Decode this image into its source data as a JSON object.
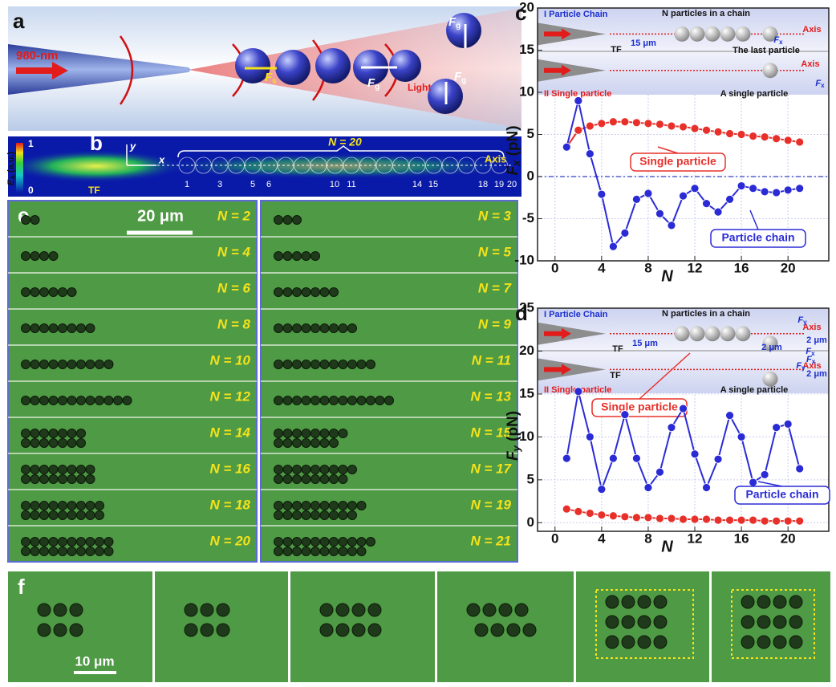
{
  "panels": {
    "a": {
      "label": "a",
      "laser": "980-nm",
      "force_s": [
        "F",
        "s"
      ],
      "force_g_1": [
        "F",
        "g"
      ],
      "force_g_2": [
        "F",
        "g"
      ],
      "force_g_3": [
        "F",
        "g"
      ],
      "light": "Light"
    },
    "b": {
      "label": "b",
      "axis_y": "y",
      "axis_x": "x",
      "count": "N = 20",
      "axis": "Axis",
      "tf": "TF",
      "colorbar_label": [
        "E",
        "A",
        " (a.u.)"
      ],
      "colorbar_max": "1",
      "colorbar_min": "0",
      "indices": [
        "1",
        "3",
        "5",
        "6",
        "10",
        "11",
        "14",
        "15",
        "18",
        "19",
        "20"
      ]
    },
    "e": {
      "label": "e",
      "scale": "20 μm",
      "counts_left": [
        "N = 2",
        "N = 4",
        "N = 6",
        "N = 8",
        "N = 10",
        "N = 12",
        "N = 14",
        "N = 16",
        "N = 18",
        "N = 20"
      ],
      "counts_right": [
        "N = 3",
        "N = 5",
        "N = 7",
        "N = 9",
        "N = 11",
        "N = 13",
        "N = 15",
        "N = 17",
        "N = 19",
        "N = 21"
      ]
    },
    "f": {
      "label": "f",
      "scale": "10 μm"
    }
  },
  "chart_data": [
    {
      "type": "line",
      "panel_label": "c",
      "x_label": "N",
      "y_label": [
        "F",
        "x",
        " (pN)"
      ],
      "x": [
        1,
        2,
        3,
        4,
        5,
        6,
        7,
        8,
        9,
        10,
        11,
        12,
        13,
        14,
        15,
        16,
        17,
        18,
        19,
        20,
        21
      ],
      "xlim": [
        -1.5,
        23.5
      ],
      "xticks": [
        0,
        4,
        8,
        12,
        16,
        20
      ],
      "ylim": [
        -10,
        20
      ],
      "yticks": [
        -10,
        -5,
        0,
        5,
        10,
        15,
        20
      ],
      "grid": true,
      "series": [
        {
          "name": "Single particle",
          "color": "#e8302a",
          "values": [
            3.5,
            5.5,
            6.0,
            6.3,
            6.5,
            6.5,
            6.4,
            6.3,
            6.2,
            6.0,
            5.9,
            5.7,
            5.5,
            5.3,
            5.1,
            5.0,
            4.8,
            4.7,
            4.5,
            4.3,
            4.1
          ]
        },
        {
          "name": "Particle chain",
          "color": "#2b2bd6",
          "values": [
            3.5,
            9.0,
            2.7,
            -2.1,
            -8.3,
            -6.7,
            -2.7,
            -2.0,
            -4.4,
            -5.8,
            -2.3,
            -1.4,
            -3.2,
            -4.2,
            -2.7,
            -1.1,
            -1.4,
            -1.8,
            -1.9,
            -1.6,
            -1.4
          ]
        }
      ],
      "insets": {
        "chain_title": "I Particle Chain",
        "chain_note": "N particles in a chain",
        "axis_1": "Axis",
        "tf_1": "TF",
        "gap": "15 μm",
        "last": "The last particle",
        "force_1": [
          "F",
          "x"
        ],
        "single_title": "II Single particle",
        "axis_2": "Axis",
        "single_note": "A single particle",
        "force_2": [
          "F",
          "x"
        ]
      }
    },
    {
      "type": "line",
      "panel_label": "d",
      "x_label": "N",
      "y_label": [
        "F",
        "y",
        " (pN)"
      ],
      "x": [
        1,
        2,
        3,
        4,
        5,
        6,
        7,
        8,
        9,
        10,
        11,
        12,
        13,
        14,
        15,
        16,
        17,
        18,
        19,
        20,
        21
      ],
      "xlim": [
        -1.5,
        23.5
      ],
      "xticks": [
        0,
        4,
        8,
        12,
        16,
        20
      ],
      "ylim": [
        -1,
        25
      ],
      "yticks": [
        0,
        5,
        10,
        15,
        20,
        25
      ],
      "grid": true,
      "series": [
        {
          "name": "Single particle",
          "color": "#e8302a",
          "values": [
            1.6,
            1.3,
            1.1,
            0.9,
            0.8,
            0.7,
            0.6,
            0.6,
            0.5,
            0.5,
            0.4,
            0.4,
            0.4,
            0.3,
            0.3,
            0.3,
            0.3,
            0.2,
            0.2,
            0.2,
            0.2
          ]
        },
        {
          "name": "Particle chain",
          "color": "#2b2bd6",
          "values": [
            7.5,
            15.3,
            10.0,
            3.9,
            7.5,
            12.6,
            7.5,
            4.1,
            5.9,
            11.1,
            13.3,
            8.0,
            4.1,
            7.4,
            12.5,
            10.0,
            4.7,
            5.6,
            11.1,
            11.5,
            6.3
          ]
        }
      ],
      "insets": {
        "chain_title": "I Particle Chain",
        "chain_note": "N particles in a chain",
        "axis_1": "Axis",
        "tf_1": "TF",
        "gap": "15 μm",
        "offset_1": "2 μm",
        "offset_2": "2 μm",
        "force_1": [
          "F",
          "y"
        ],
        "force_2": [
          "F",
          "x"
        ],
        "single_title": "II Single particle",
        "axis_2": "Axis",
        "tf_2": "TF",
        "offset_3": "2 μm",
        "single_note": "A single particle",
        "force_3": [
          "F",
          "y"
        ],
        "force_4": [
          "F",
          "x"
        ]
      }
    }
  ]
}
